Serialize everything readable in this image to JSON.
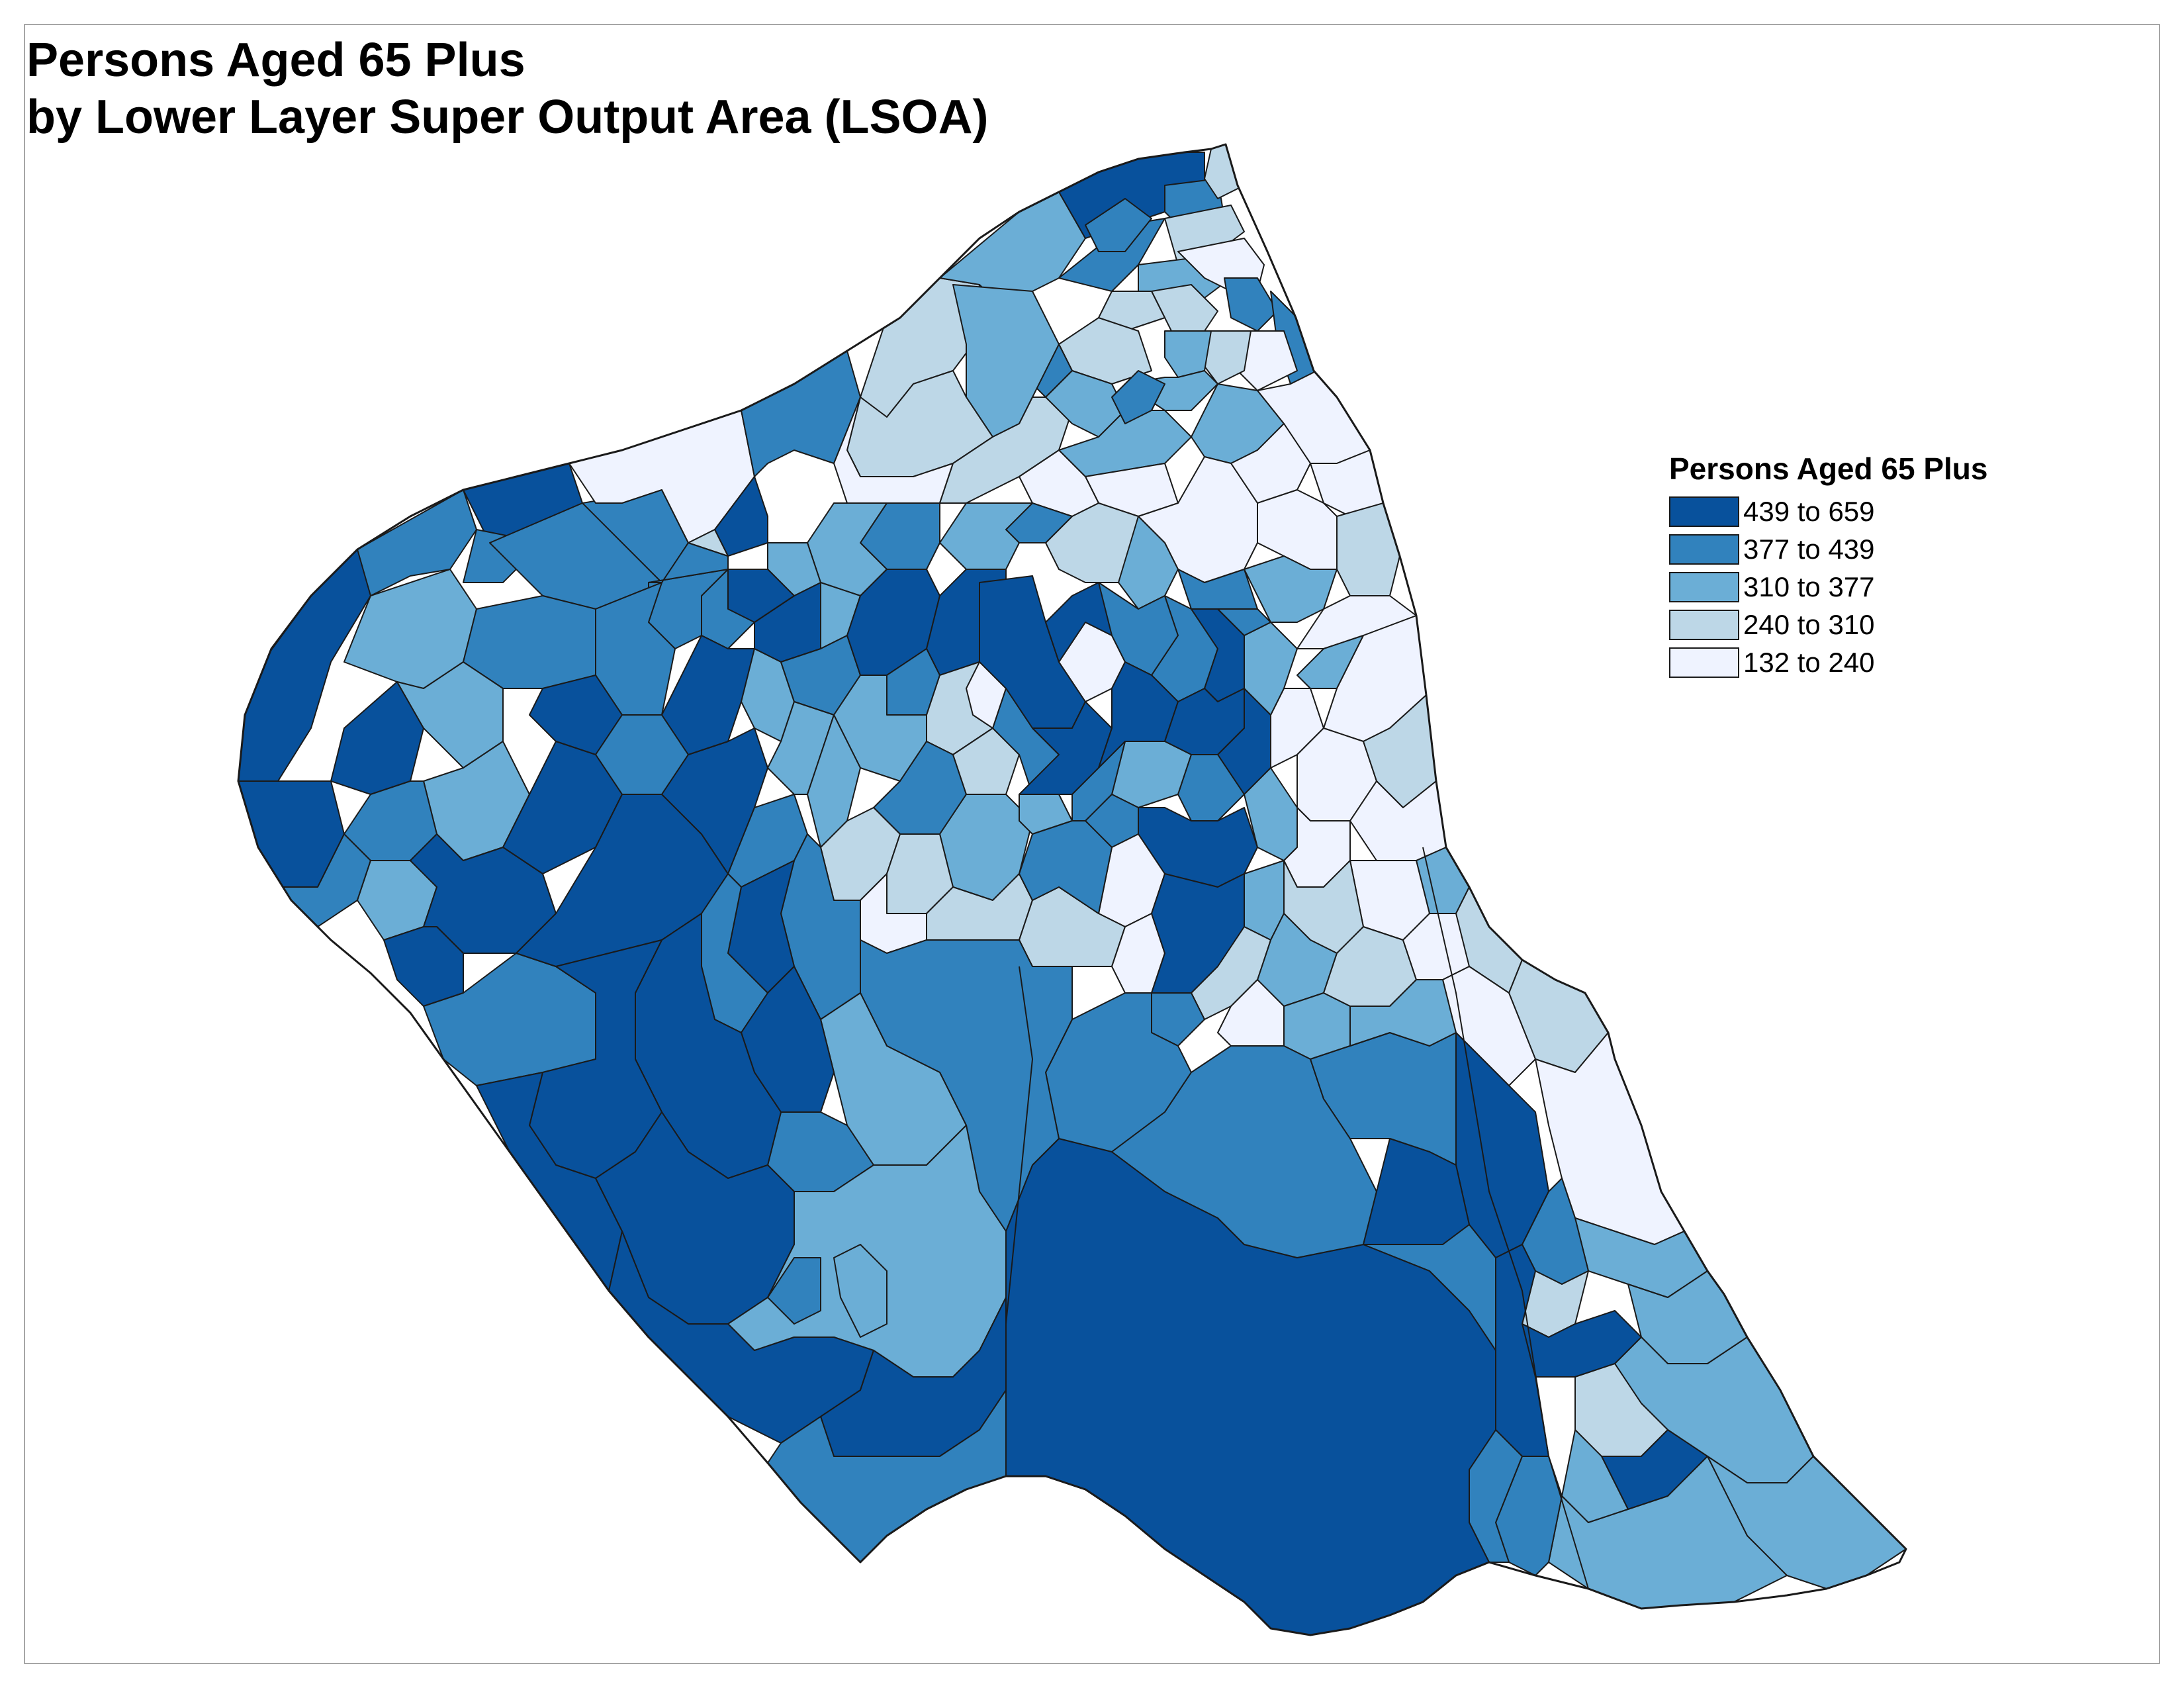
{
  "title": {
    "line1": "Persons Aged 65 Plus",
    "line2": "by Lower Layer Super Output Area (LSOA)"
  },
  "legend": {
    "title": "Persons Aged 65 Plus",
    "classes": [
      {
        "label": "439 to 659",
        "color": "#08519c"
      },
      {
        "label": "377 to 439",
        "color": "#3182bd"
      },
      {
        "label": "310 to 377",
        "color": "#6baed6"
      },
      {
        "label": "240 to 310",
        "color": "#bdd7e7"
      },
      {
        "label": "132 to 240",
        "color": "#eff3ff"
      }
    ]
  },
  "colors": {
    "c1": "#08519c",
    "c2": "#3182bd",
    "c3": "#6baed6",
    "c4": "#bdd7e7",
    "c5": "#eff3ff",
    "border": "#1a1a1a",
    "frame": "#a6a6a6"
  }
}
